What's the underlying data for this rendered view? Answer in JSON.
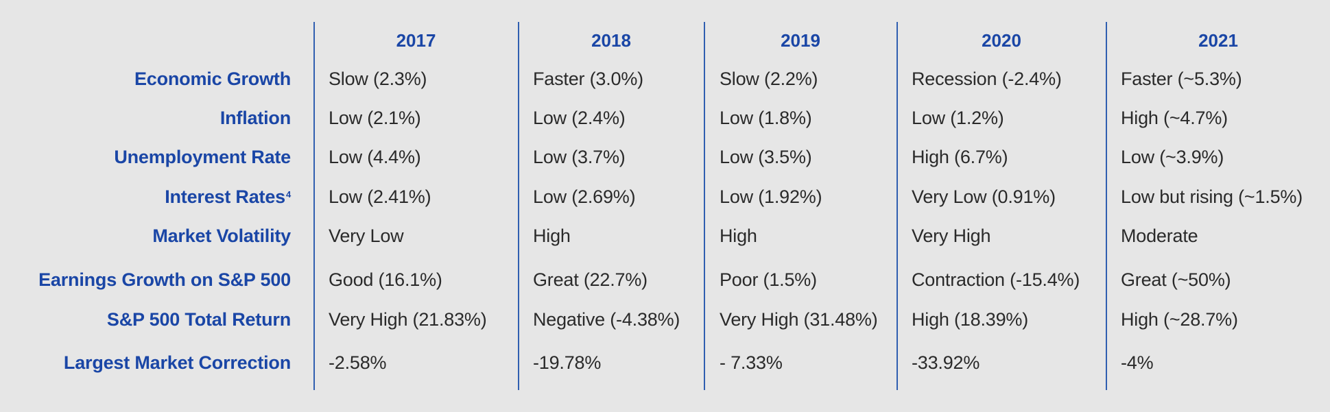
{
  "years": [
    "2017",
    "2018",
    "2019",
    "2020",
    "2021"
  ],
  "rows": [
    {
      "label": "Economic Growth",
      "sup": "",
      "values": [
        "Slow (2.3%)",
        "Faster (3.0%)",
        "Slow (2.2%)",
        "Recession (-2.4%)",
        "Faster (~5.3%)"
      ]
    },
    {
      "label": "Inflation",
      "sup": "",
      "values": [
        "Low (2.1%)",
        "Low (2.4%)",
        "Low (1.8%)",
        "Low (1.2%)",
        "High (~4.7%)"
      ]
    },
    {
      "label": "Unemployment Rate",
      "sup": "",
      "values": [
        "Low (4.4%)",
        "Low (3.7%)",
        "Low (3.5%)",
        "High (6.7%)",
        "Low (~3.9%)"
      ]
    },
    {
      "label": "Interest Rates",
      "sup": "4",
      "values": [
        "Low (2.41%)",
        "Low (2.69%)",
        "Low (1.92%)",
        "Very Low (0.91%)",
        "Low but rising (~1.5%)"
      ]
    },
    {
      "label": "Market Volatility",
      "sup": "",
      "values": [
        "Very Low",
        "High",
        "High",
        "Very High",
        "Moderate"
      ]
    },
    {
      "label": "Earnings Growth on S&P 500",
      "sup": "",
      "values": [
        "Good (16.1%)",
        "Great (22.7%)",
        "Poor (1.5%)",
        "Contraction (-15.4%)",
        "Great (~50%)"
      ]
    },
    {
      "label": "S&P 500 Total Return",
      "sup": "",
      "values": [
        "Very High (21.83%)",
        "Negative (-4.38%)",
        "Very High (31.48%)",
        "High (18.39%)",
        "High (~28.7%)"
      ]
    },
    {
      "label": "Largest Market Correction",
      "sup": "",
      "values": [
        "-2.58%",
        "-19.78%",
        "- 7.33%",
        "-33.92%",
        "-4%"
      ]
    }
  ],
  "colors": {
    "background": "#e6e6e6",
    "header_blue": "#1a46a6",
    "divider_blue": "#2f5eb0",
    "body_text": "#2a2a2a"
  }
}
